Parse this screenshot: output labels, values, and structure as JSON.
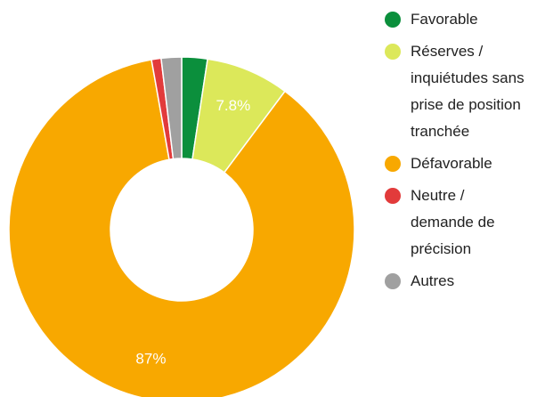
{
  "chart_data": {
    "type": "donut",
    "categories": [
      "Favorable",
      "Réserves / inquiétudes sans prise de position tranchée",
      "Défavorable",
      "Neutre / demande de précision",
      "Autres"
    ],
    "values": [
      2.4,
      7.8,
      87,
      0.9,
      1.9
    ],
    "value_labels": [
      null,
      "7.8%",
      "87%",
      null,
      null
    ],
    "colors": [
      "#0b8f3c",
      "#dce85a",
      "#f8a800",
      "#e23b3b",
      "#a0a0a0"
    ],
    "legend": "right"
  }
}
